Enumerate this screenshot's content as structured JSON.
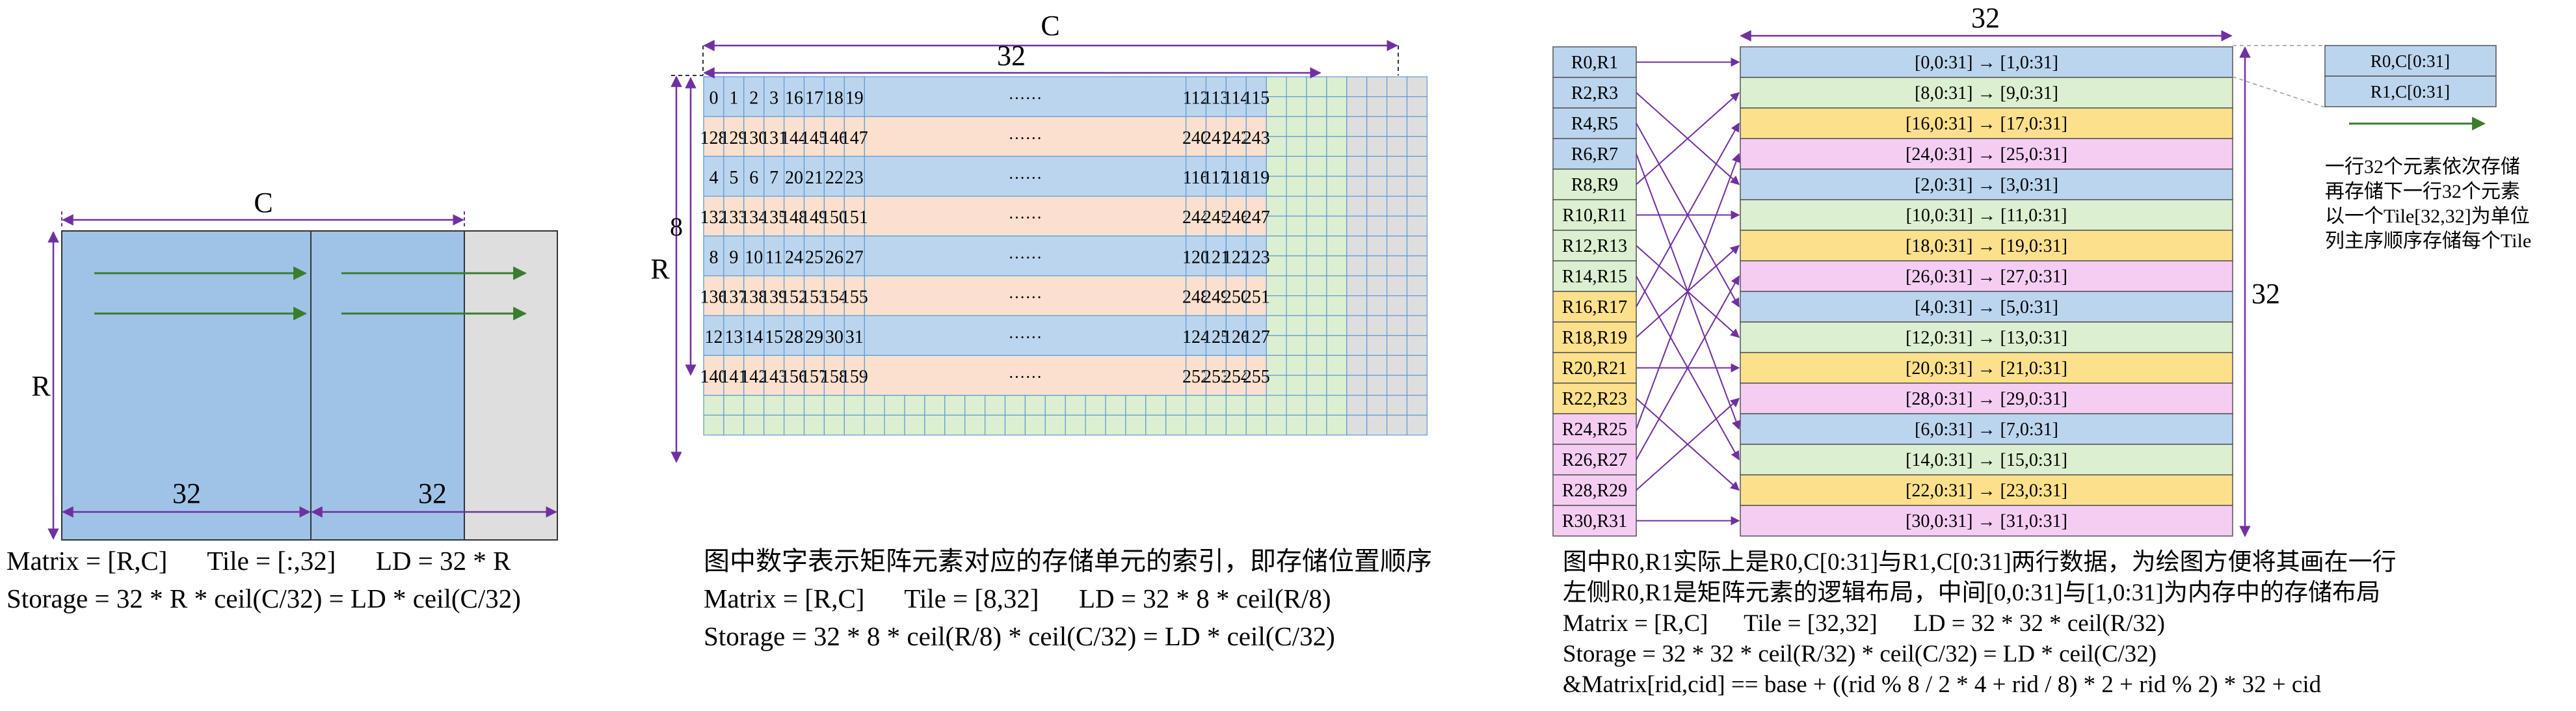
{
  "panel1": {
    "label_c": "C",
    "label_r": "R",
    "label_32_a": "32",
    "label_32_b": "32",
    "caption": [
      "Matrix = [R,C]      Tile = [:,32]      LD = 32 * R",
      "Storage = 32 * R * ceil(C/32) = LD * ceil(C/32)"
    ]
  },
  "panel2": {
    "label_c": "C",
    "label_r": "R",
    "label_32": "32",
    "label_8": "8",
    "ellipsis": "······",
    "rows": [
      [
        "0",
        "1",
        "2",
        "3",
        "16",
        "17",
        "18",
        "19",
        "112",
        "113",
        "114",
        "115"
      ],
      [
        "128",
        "129",
        "130",
        "131",
        "144",
        "145",
        "146",
        "147",
        "240",
        "241",
        "242",
        "243"
      ],
      [
        "4",
        "5",
        "6",
        "7",
        "20",
        "21",
        "22",
        "23",
        "116",
        "117",
        "118",
        "119"
      ],
      [
        "132",
        "133",
        "134",
        "135",
        "148",
        "149",
        "150",
        "151",
        "244",
        "245",
        "246",
        "247"
      ],
      [
        "8",
        "9",
        "10",
        "11",
        "24",
        "25",
        "26",
        "27",
        "120",
        "121",
        "122",
        "123"
      ],
      [
        "136",
        "137",
        "138",
        "139",
        "152",
        "153",
        "154",
        "155",
        "248",
        "249",
        "250",
        "251"
      ],
      [
        "12",
        "13",
        "14",
        "15",
        "28",
        "29",
        "30",
        "31",
        "124",
        "125",
        "126",
        "127"
      ],
      [
        "140",
        "141",
        "142",
        "143",
        "156",
        "157",
        "158",
        "159",
        "252",
        "253",
        "254",
        "255"
      ]
    ],
    "caption": [
      "图中数字表示矩阵元素对应的存储单元的索引，即存储位置顺序",
      "Matrix = [R,C]      Tile = [8,32]      LD = 32 * 8 * ceil(R/8)",
      "Storage = 32 * 8 * ceil(R/8) * ceil(C/32) = LD * ceil(C/32)"
    ]
  },
  "panel3": {
    "label_32_top": "32",
    "label_32_right": "32",
    "left_rows": [
      "R0,R1",
      "R2,R3",
      "R4,R5",
      "R6,R7",
      "R8,R9",
      "R10,R11",
      "R12,R13",
      "R14,R15",
      "R16,R17",
      "R18,R19",
      "R20,R21",
      "R22,R23",
      "R24,R25",
      "R26,R27",
      "R28,R29",
      "R30,R31"
    ],
    "mid_rows": [
      "[0,0:31]  →  [1,0:31]",
      "[8,0:31]  →  [9,0:31]",
      "[16,0:31]  →  [17,0:31]",
      "[24,0:31]  →  [25,0:31]",
      "[2,0:31]  →  [3,0:31]",
      "[10,0:31]  →  [11,0:31]",
      "[18,0:31]  →  [19,0:31]",
      "[26,0:31]  →  [27,0:31]",
      "[4,0:31]  →  [5,0:31]",
      "[12,0:31]  →  [13,0:31]",
      "[20,0:31]  →  [21,0:31]",
      "[28,0:31]  →  [29,0:31]",
      "[6,0:31]  →  [7,0:31]",
      "[14,0:31]  →  [15,0:31]",
      "[22,0:31]  →  [23,0:31]",
      "[30,0:31]  →  [31,0:31]"
    ],
    "inset_rows": [
      "R0,C[0:31]",
      "R1,C[0:31]"
    ],
    "note": [
      "一行32个元素依次存储",
      "再存储下一行32个元素",
      "以一个Tile[32,32]为单位",
      "列主序顺序存储每个Tile"
    ],
    "caption": [
      "图中R0,R1实际上是R0,C[0:31]与R1,C[0:31]两行数据，为绘图方便将其画在一行",
      "左侧R0,R1是矩阵元素的逻辑布局，中间[0,0:31]与[1,0:31]为内存中的存储布局",
      "Matrix = [R,C]      Tile = [32,32]      LD = 32 * 32 * ceil(R/32)",
      "Storage = 32 * 32 * ceil(R/32) * ceil(C/32) = LD * ceil(C/32)",
      "&Matrix[rid,cid] == base + ((rid % 8 / 2 * 4 + rid / 8) * 2 + rid % 2) * 32 + cid"
    ]
  },
  "colors": {
    "blue": "#bcd5ee",
    "blue_dark": "#9fc3e7",
    "orange": "#fbe0cd",
    "green": "#dcefd0",
    "gray": "#dedede",
    "yellow": "#fde08c",
    "pink": "#f5cdf3",
    "purple": "#7030a0",
    "arrow_green": "#3a7d2c",
    "grid_line": "#5b9bd5"
  }
}
